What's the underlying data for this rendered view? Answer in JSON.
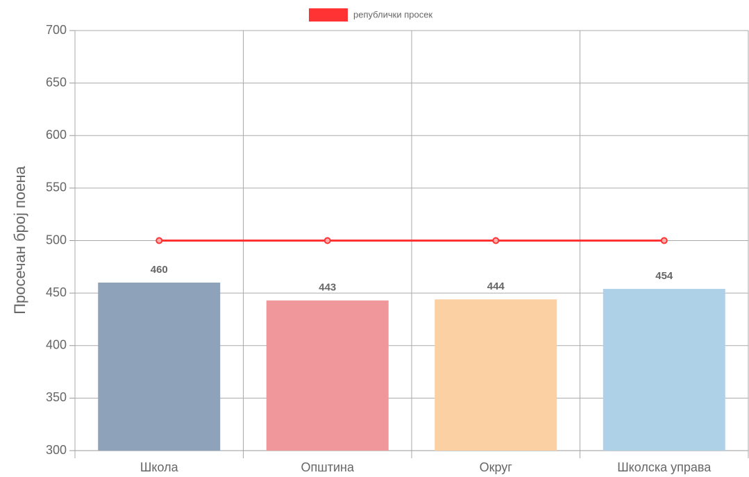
{
  "chart_data": {
    "type": "bar",
    "y_label": "Просечан број поена",
    "categories": [
      "Школа",
      "Општина",
      "Округ",
      "Школска управа"
    ],
    "series": [
      {
        "type": "bar",
        "values": [
          460,
          443,
          444,
          454
        ],
        "colors": [
          "#8ea2b9",
          "#ef979b",
          "#fbd0a2",
          "#afd1e7"
        ]
      },
      {
        "type": "line",
        "name": "републички просек",
        "color": "#ff3333",
        "values": [
          500,
          500,
          500,
          500
        ]
      }
    ],
    "ylim": [
      300,
      700
    ],
    "yticks": [
      300,
      350,
      400,
      450,
      500,
      550,
      600,
      650,
      700
    ],
    "grid": true,
    "value_labels_shown": true,
    "legend": "top"
  }
}
